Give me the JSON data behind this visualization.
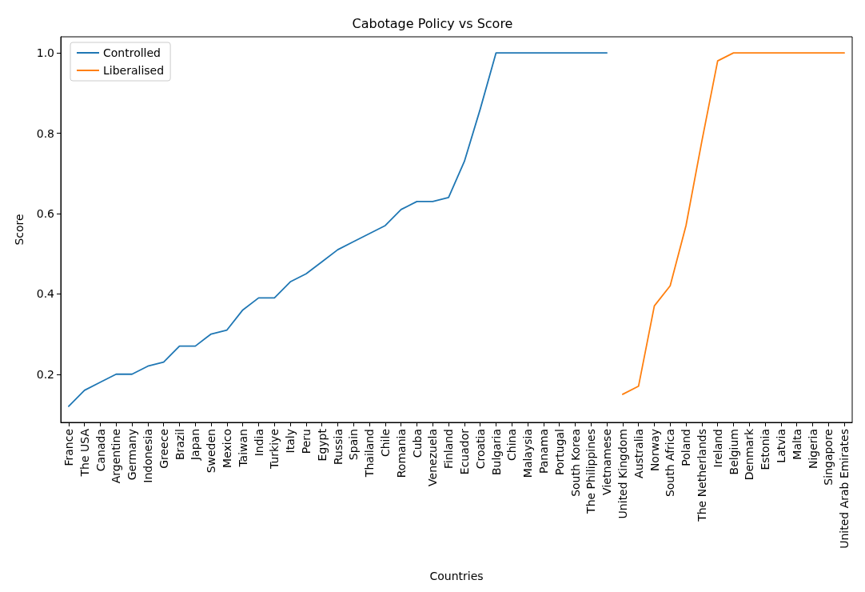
{
  "chart_data": {
    "type": "line",
    "title": "Cabotage Policy vs Score",
    "xlabel": "Countries",
    "ylabel": "Score",
    "categories": [
      "France",
      "The USA",
      "Canada",
      "Argentine",
      "Germany",
      "Indonesia",
      "Greece",
      "Brazil",
      "Japan",
      "Sweden",
      "Mexico",
      "Taiwan",
      "India",
      "Turkiye",
      "Italy",
      "Peru",
      "Egypt",
      "Russia",
      "Spain",
      "Thailand",
      "Chile",
      "Romania",
      "Cuba",
      "Venezuela",
      "Finland",
      "Ecuador",
      "Croatia",
      "Bulgaria",
      "China",
      "Malaysia",
      "Panama",
      "Portugal",
      "South Korea",
      "The Philippines",
      "Vietnamese",
      "United Kingdom",
      "Australia",
      "Norway",
      "South Africa",
      "Poland",
      "The Netherlands",
      "Ireland",
      "Belgium",
      "Denmark",
      "Estonia",
      "Latvia",
      "Malta",
      "Nigeria",
      "Singapore",
      "United Arab Emirates"
    ],
    "series": [
      {
        "name": "Controlled",
        "color": "#1f77b4",
        "values": [
          0.12,
          0.16,
          0.18,
          0.2,
          0.2,
          0.22,
          0.23,
          0.27,
          0.27,
          0.3,
          0.31,
          0.36,
          0.39,
          0.39,
          0.43,
          0.45,
          0.48,
          0.51,
          0.53,
          0.55,
          0.57,
          0.61,
          0.63,
          0.63,
          0.64,
          0.73,
          0.86,
          1.0,
          1.0,
          1.0,
          1.0,
          1.0,
          1.0,
          1.0,
          1.0,
          null,
          null,
          null,
          null,
          null,
          null,
          null,
          null,
          null,
          null,
          null,
          null,
          null,
          null,
          null
        ]
      },
      {
        "name": "Liberalised",
        "color": "#ff7f0e",
        "values": [
          null,
          null,
          null,
          null,
          null,
          null,
          null,
          null,
          null,
          null,
          null,
          null,
          null,
          null,
          null,
          null,
          null,
          null,
          null,
          null,
          null,
          null,
          null,
          null,
          null,
          null,
          null,
          null,
          null,
          null,
          null,
          null,
          null,
          null,
          null,
          0.15,
          0.17,
          0.37,
          0.42,
          0.57,
          0.78,
          0.98,
          1.0,
          1.0,
          1.0,
          1.0,
          1.0,
          1.0,
          1.0,
          1.0
        ]
      }
    ],
    "ylim": [
      0.08,
      1.04
    ],
    "yticks": [
      0.2,
      0.4,
      0.6,
      0.8,
      {
        "value": 1,
        "label": "1.0"
      }
    ],
    "grid": false,
    "legend": "top left",
    "marker": "none",
    "line_style": "solid"
  }
}
